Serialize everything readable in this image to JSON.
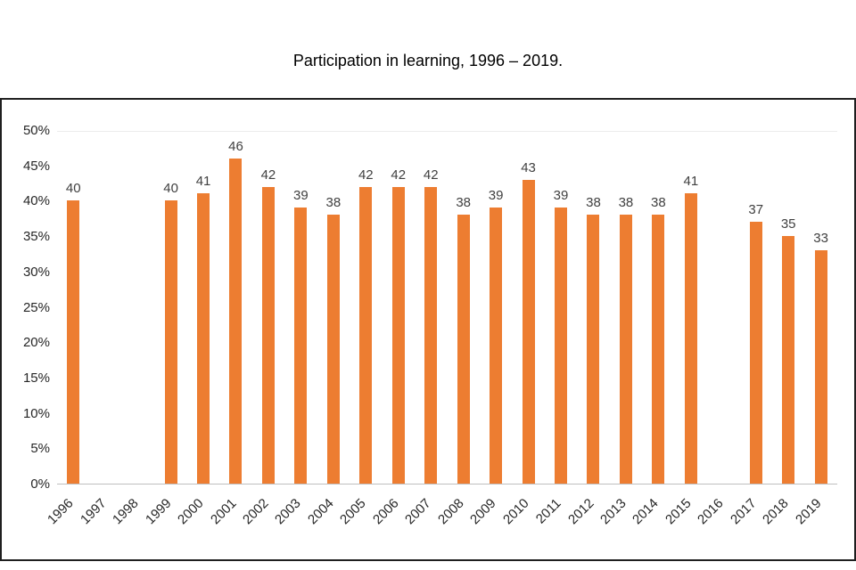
{
  "title": "Participation in learning, 1996 – 2019.",
  "chart_data": {
    "type": "bar",
    "title": "Participation in learning, 1996 – 2019.",
    "xlabel": "",
    "ylabel": "",
    "categories": [
      "1996",
      "1997",
      "1998",
      "1999",
      "2000",
      "2001",
      "2002",
      "2003",
      "2004",
      "2005",
      "2006",
      "2007",
      "2008",
      "2009",
      "2010",
      "2011",
      "2012",
      "2013",
      "2014",
      "2015",
      "2016",
      "2017",
      "2018",
      "2019"
    ],
    "values": [
      40,
      null,
      null,
      40,
      41,
      46,
      42,
      39,
      38,
      42,
      42,
      42,
      38,
      39,
      43,
      39,
      38,
      38,
      38,
      41,
      null,
      37,
      35,
      33
    ],
    "ylim": [
      0,
      50
    ],
    "ytick_step": 5,
    "ytick_labels": [
      "0%",
      "5%",
      "10%",
      "15%",
      "20%",
      "25%",
      "30%",
      "35%",
      "40%",
      "45%",
      "50%"
    ],
    "grid": false,
    "legend": "none",
    "bar_color": "#ED7D31",
    "value_label_color": "#404040",
    "axis_label_color": "#262626",
    "axis_line_color": "#BFBFBF"
  }
}
